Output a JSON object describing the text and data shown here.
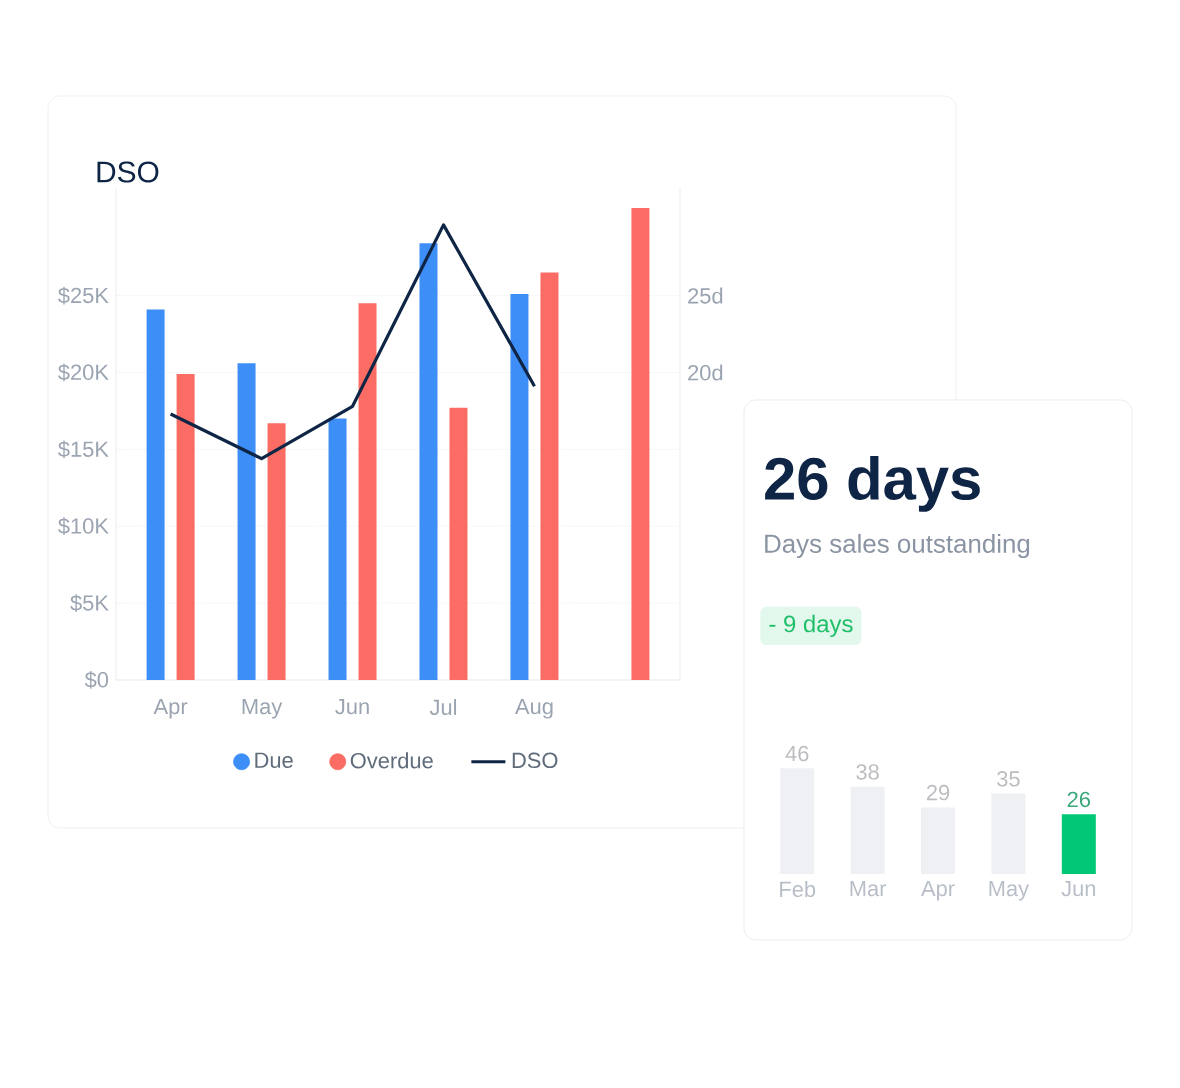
{
  "chart_data": [
    {
      "type": "bar",
      "title": "DSO",
      "categories": [
        "Apr",
        "May",
        "Jun",
        "Jul",
        "Aug",
        null
      ],
      "ylim": [
        0,
        32
      ],
      "yticks": [
        {
          "value": 0,
          "label": "$0"
        },
        {
          "value": 5,
          "label": "$5K"
        },
        {
          "value": 10,
          "label": "$10K"
        },
        {
          "value": 15,
          "label": "$15K"
        },
        {
          "value": 20,
          "label": "$20K"
        },
        {
          "value": 25,
          "label": "$25K"
        }
      ],
      "y2lim": [
        0,
        32
      ],
      "y2ticks": [
        {
          "value": 20,
          "label": "20d"
        },
        {
          "value": 25,
          "label": "25d"
        }
      ],
      "grid": "y",
      "legend": "bottom",
      "series": [
        {
          "name": "Due",
          "color": "#3d8ef7",
          "values": [
            24.1,
            20.6,
            17.0,
            28.4,
            25.1,
            null
          ]
        },
        {
          "name": "Overdue",
          "color": "#fb6d64",
          "values": [
            19.9,
            16.7,
            24.5,
            17.7,
            26.5,
            30.7
          ]
        },
        {
          "name": "DSO",
          "type": "line",
          "axis": "y2",
          "color": "#0f2545",
          "values": [
            17.3,
            14.4,
            17.8,
            29.6,
            19.1,
            null
          ]
        }
      ]
    },
    {
      "type": "bar",
      "title": "26 days",
      "subtitle": "Days sales outstanding",
      "annotations": [
        "- 9 days"
      ],
      "categories": [
        "Feb",
        "Mar",
        "Apr",
        "May",
        "Jun"
      ],
      "values": [
        46,
        38,
        29,
        35,
        26
      ],
      "colors": [
        "#eef0f4",
        "#eef0f4",
        "#eef0f4",
        "#eef0f4",
        "#00c875"
      ],
      "data_labels": true
    }
  ]
}
